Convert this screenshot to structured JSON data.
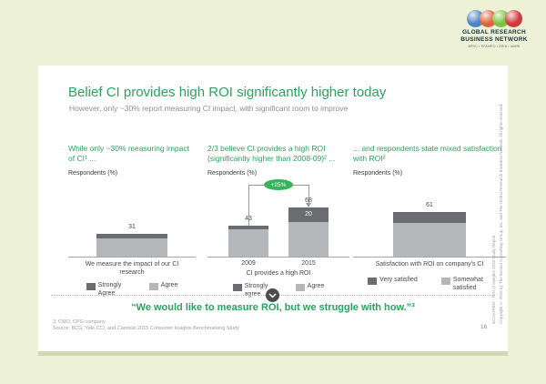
{
  "slide": {
    "title": "Belief CI provides high ROI significantly higher today",
    "subtitle": "However, only ~30% report measuring CI impact, with significant room to improve",
    "quote": "“We would like to measure ROI, but we struggle with how.”³",
    "footnote": "3. CMO, CPG company",
    "source_line": "Source: BCG, Yale CCI, and Cambiar 2015 Consumer Insights Benchmarking Study",
    "page_number": "16",
    "side_text_line1": "BCG/GRBN – ROI of Insights 2015 Study Report",
    "side_text_line2": "Copyright © 2015 by The Boston Consulting Group, Inc. and The Global Research Business Network. All rights reserved."
  },
  "logo": {
    "name_line1": "GLOBAL RESEARCH",
    "name_line2": "BUSINESS NETWORK",
    "tagline": "APRC • EFAMRO • ARIA • IAMRI",
    "balloon_colors": [
      "#4a86c8",
      "#e2633f",
      "#7dc242",
      "#d03a3a"
    ]
  },
  "chart_data": [
    {
      "type": "bar",
      "stacked": true,
      "heading": "While only ~30% measuring impact of CI¹ ...",
      "ylabel": "Respondents (%)",
      "ylim": [
        0,
        100
      ],
      "axis_caption": "We measure the impact of our CI research",
      "bars": [
        {
          "category": "We measure the impact of our CI research",
          "total": 31,
          "segments": [
            6,
            25
          ]
        }
      ],
      "legend": [
        {
          "label": "Strongly Agree",
          "shade": "dark"
        },
        {
          "label": "Agree",
          "shade": "light"
        }
      ]
    },
    {
      "type": "bar",
      "stacked": true,
      "heading": "2/3 believe CI provides a high ROI (significantly higher than 2008-09)² ...",
      "ylabel": "Respondents (%)",
      "ylim": [
        0,
        100
      ],
      "tick_labels": [
        "2009",
        "2015"
      ],
      "axis_caption": "CI provides a high ROI",
      "bars": [
        {
          "category": "2009",
          "total": 43,
          "segments": [
            5,
            38
          ]
        },
        {
          "category": "2015",
          "total": 68,
          "segments": [
            20,
            48
          ],
          "inner_label": "20"
        }
      ],
      "annotation": {
        "label": "+25%"
      },
      "legend": [
        {
          "label": "Strongly agree",
          "shade": "dark"
        },
        {
          "label": "Agree",
          "shade": "light"
        }
      ]
    },
    {
      "type": "bar",
      "stacked": true,
      "heading": "... and respondents state mixed satisfaction with ROI²",
      "ylabel": "Respondents (%)",
      "ylim": [
        0,
        100
      ],
      "axis_caption": "Satisfaction with ROI on company's CI",
      "bars": [
        {
          "category": "Satisfaction with ROI on company's CI",
          "total": 61,
          "segments": [
            15,
            46
          ]
        }
      ],
      "legend": [
        {
          "label": "Very satisfied",
          "shade": "dark"
        },
        {
          "label": "Somewhat satisfied",
          "shade": "light"
        }
      ]
    }
  ],
  "colors": {
    "accent_green": "#2aa45e",
    "badge_green": "#36b45a",
    "bar_dark": "#6b6b72",
    "bar_light": "#b5b8ba",
    "page_background": "#edf2d6"
  }
}
